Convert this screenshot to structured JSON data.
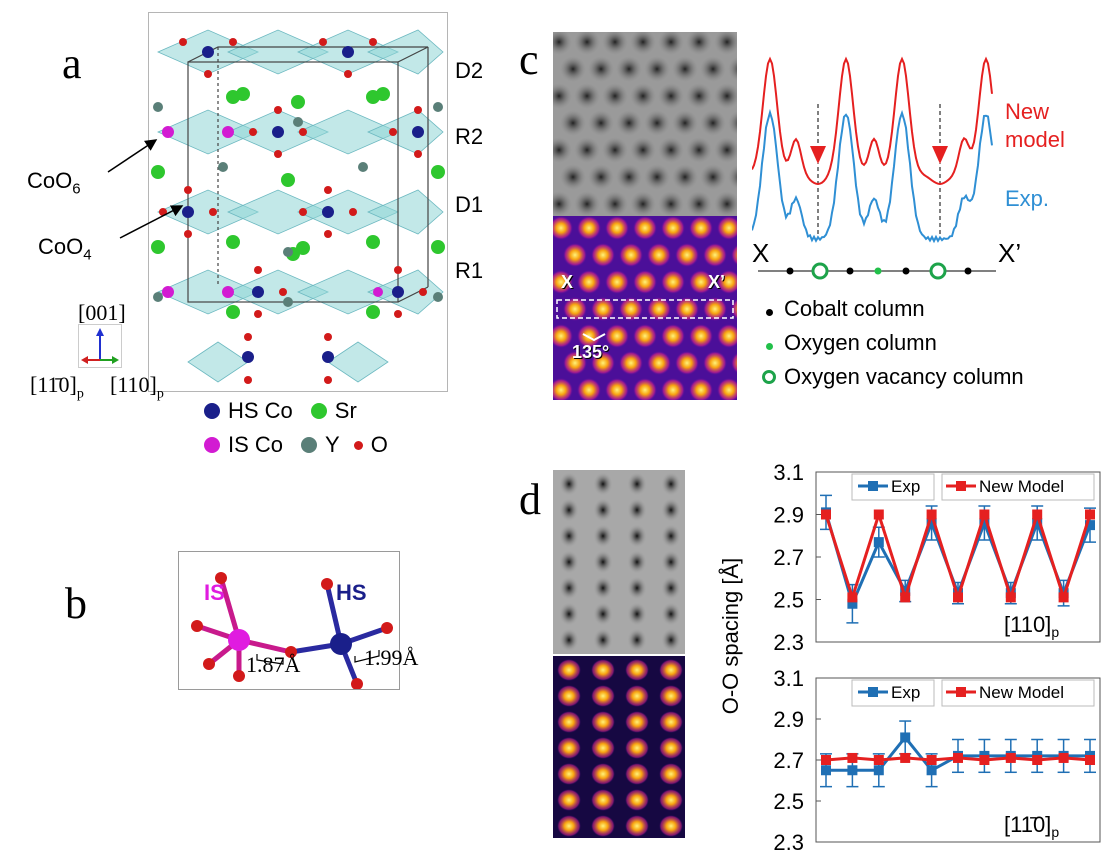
{
  "panel_a": {
    "letter": "a",
    "layer_labels": [
      "D2",
      "R2",
      "D1",
      "R1"
    ],
    "polyhedra_labels": {
      "coo6": "CoO",
      "coo6_sub": "6",
      "coo4": "CoO",
      "coo4_sub": "4"
    },
    "axes": {
      "vertical": "[001]",
      "left": "[11̄0]",
      "left_sub": "p",
      "right": "[110]",
      "right_sub": "p"
    },
    "legend": [
      {
        "label": "HS Co",
        "color": "#1a1f8a"
      },
      {
        "label": "Sr",
        "color": "#2ec72e"
      },
      {
        "label": "IS Co",
        "color": "#d21bd2"
      },
      {
        "label": "Y",
        "color": "#5a7f78"
      },
      {
        "label": "O",
        "color": "#d21a1a"
      }
    ]
  },
  "panel_b": {
    "letter": "b",
    "is_label": "IS",
    "hs_label": "HS",
    "is_color": "#e01be0",
    "hs_color": "#1a1f8a",
    "bond_is": "1.87Å",
    "bond_hs": "1.99Å"
  },
  "panel_c": {
    "letter": "c",
    "x_label": "X",
    "x_prime_label": "X’",
    "angle_label": "135°",
    "profile_labels": {
      "model_line1": "New",
      "model_line2": "model",
      "exp": "Exp."
    },
    "model_color": "#e52020",
    "exp_color": "#2f8fd4",
    "legend": [
      {
        "label": "Cobalt column"
      },
      {
        "label": "Oxygen column"
      },
      {
        "label": "Oxygen vacancy column"
      }
    ]
  },
  "panel_d": {
    "letter": "d",
    "ylabel": "O-O spacing [Å]"
  },
  "chart_data": [
    {
      "type": "line",
      "title": "",
      "annotation": "[110]p",
      "xlabel": "",
      "ylabel": "O-O spacing [Å]",
      "ylim": [
        2.3,
        3.1
      ],
      "yticks": [
        2.3,
        2.5,
        2.7,
        2.9,
        3.1
      ],
      "x": [
        1,
        2,
        3,
        4,
        5,
        6,
        7,
        8,
        9,
        10,
        11
      ],
      "legend": "top",
      "series": [
        {
          "name": "Exp",
          "color": "#1f6fb4",
          "values": [
            2.91,
            2.48,
            2.77,
            2.54,
            2.86,
            2.53,
            2.86,
            2.53,
            2.86,
            2.53,
            2.85
          ],
          "errors": [
            0.08,
            0.09,
            0.07,
            0.05,
            0.08,
            0.05,
            0.08,
            0.05,
            0.08,
            0.06,
            0.08
          ]
        },
        {
          "name": "New Model",
          "color": "#e52020",
          "values": [
            2.9,
            2.51,
            2.9,
            2.51,
            2.9,
            2.51,
            2.9,
            2.51,
            2.9,
            2.51,
            2.9
          ]
        }
      ]
    },
    {
      "type": "line",
      "title": "",
      "annotation": "[11̄0]p",
      "xlabel": "",
      "ylabel": "O-O spacing [Å]",
      "ylim": [
        2.3,
        3.1
      ],
      "yticks": [
        2.3,
        2.5,
        2.7,
        2.9,
        3.1
      ],
      "x": [
        1,
        2,
        3,
        4,
        5,
        6,
        7,
        8,
        9,
        10,
        11
      ],
      "legend": "top",
      "series": [
        {
          "name": "Exp",
          "color": "#1f6fb4",
          "values": [
            2.65,
            2.65,
            2.65,
            2.81,
            2.65,
            2.72,
            2.72,
            2.72,
            2.72,
            2.72,
            2.72
          ],
          "errors": [
            0.08,
            0.08,
            0.08,
            0.08,
            0.08,
            0.08,
            0.08,
            0.08,
            0.08,
            0.08,
            0.08
          ]
        },
        {
          "name": "New Model",
          "color": "#e52020",
          "values": [
            2.7,
            2.71,
            2.7,
            2.71,
            2.7,
            2.71,
            2.7,
            2.71,
            2.7,
            2.71,
            2.7
          ]
        }
      ]
    }
  ]
}
